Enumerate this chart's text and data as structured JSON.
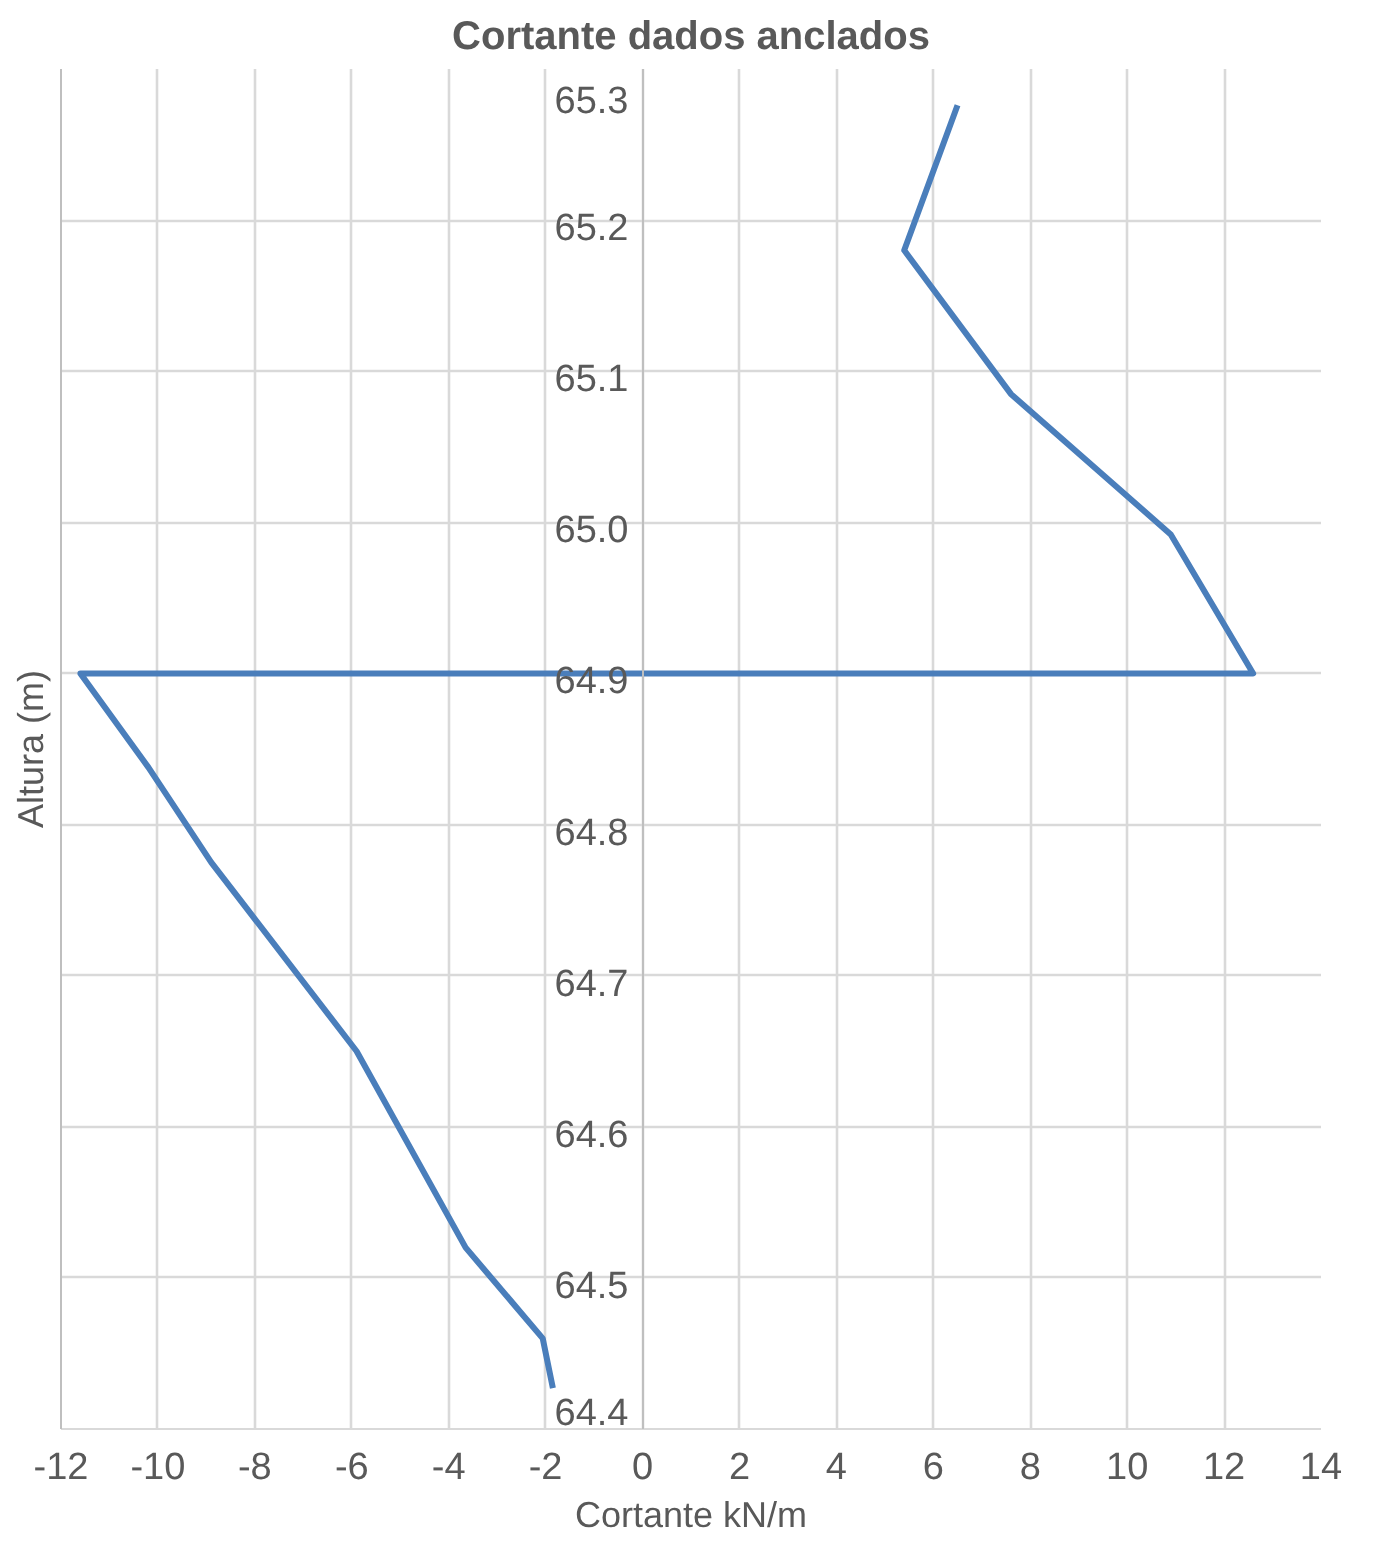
{
  "chart_data": {
    "type": "line",
    "title": "Cortante dados anclados",
    "xlabel": "Cortante kN/m",
    "ylabel": "Altura (m)",
    "x": [
      6.5,
      5.4,
      7.6,
      10.9,
      12.6,
      -11.6,
      -10.2,
      -8.9,
      -5.9,
      -3.65,
      -2.06,
      -1.85
    ],
    "values": [
      65.276,
      65.18,
      65.085,
      64.992,
      64.9,
      64.9,
      64.838,
      64.775,
      64.65,
      64.52,
      64.46,
      64.427
    ],
    "color": "#4a7ebb",
    "xlim": [
      -12,
      14
    ],
    "xticks": [
      -12,
      -10,
      -8,
      -6,
      -4,
      -2,
      0,
      2,
      4,
      6,
      8,
      10,
      12,
      14
    ],
    "ylim": [
      64.4,
      65.3
    ],
    "yticks": [
      {
        "value": 64.4,
        "label": "64.4"
      },
      {
        "value": 64.5,
        "label": "64.5"
      },
      {
        "value": 64.6,
        "label": "64.6"
      },
      {
        "value": 64.7,
        "label": "64.7"
      },
      {
        "value": 64.8,
        "label": "64.8"
      },
      {
        "value": 64.9,
        "label": "64.9"
      },
      {
        "value": 65.0,
        "label": "65.0"
      },
      {
        "value": 65.1,
        "label": "65.1"
      },
      {
        "value": 65.2,
        "label": "65.2"
      },
      {
        "value": 65.3,
        "label": "65.3"
      }
    ],
    "grid": true,
    "legend": false,
    "marker": "none",
    "line_style": "solid"
  }
}
